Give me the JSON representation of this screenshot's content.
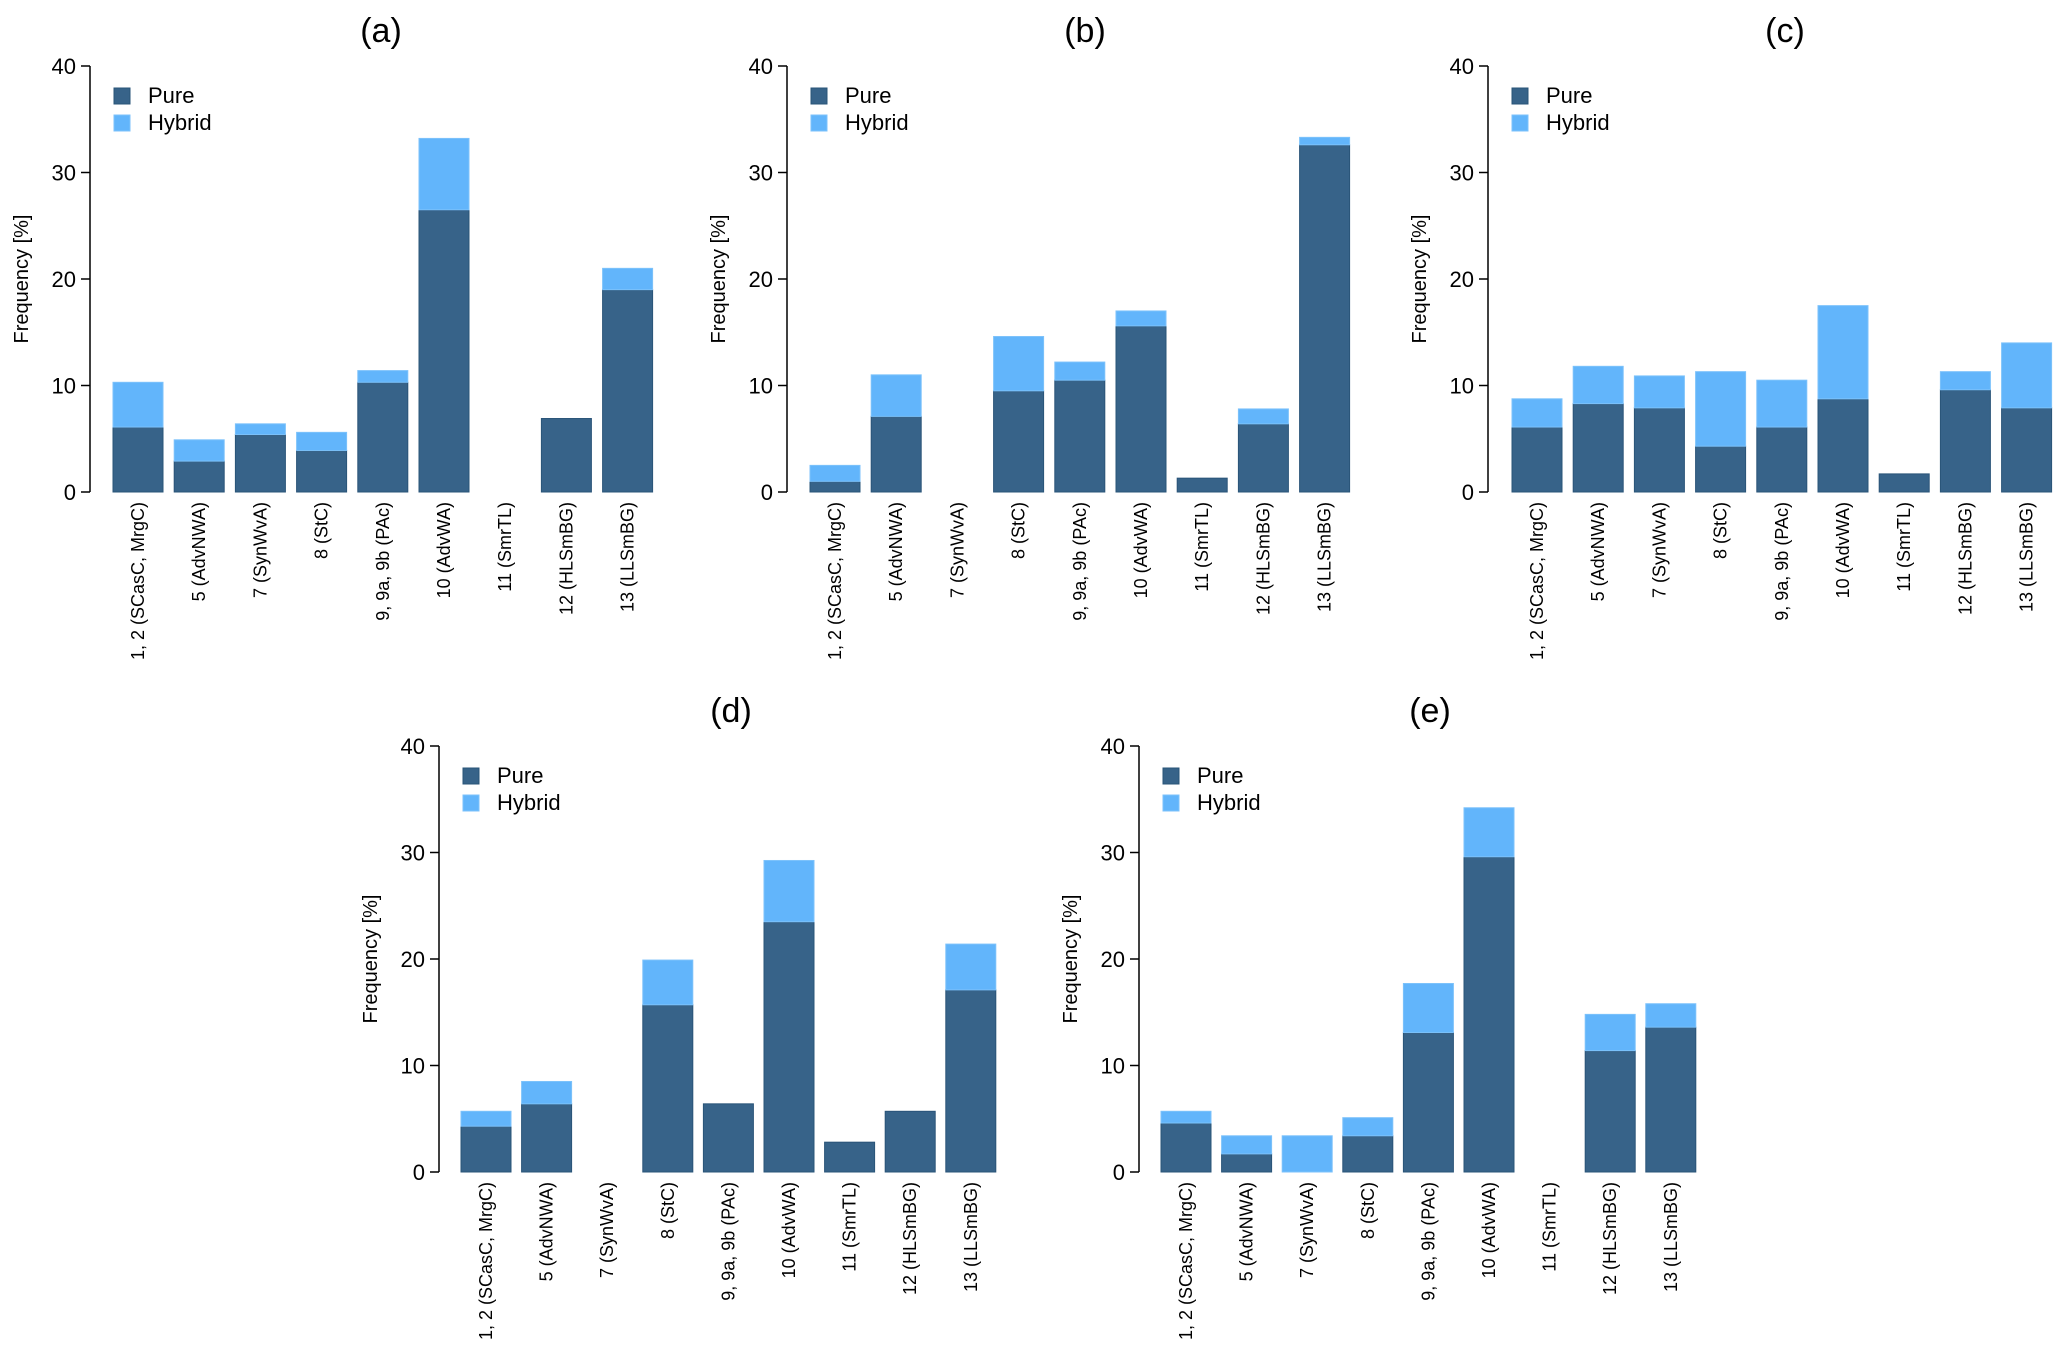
{
  "chart_data": [
    {
      "type": "bar",
      "stacked": true,
      "title": "(a)",
      "xlabel": "",
      "ylabel": "Frequency [%]",
      "ylim": [
        0,
        40
      ],
      "yticks": [
        0,
        10,
        20,
        30,
        40
      ],
      "grid": false,
      "legend": {
        "placement": "top-left",
        "entries": [
          "Pure",
          "Hybrid"
        ]
      },
      "categories": [
        "1, 2 (SCasC, MrgC)",
        "5 (AdvNWA)",
        "7 (SynWvA)",
        "8 (StC)",
        "9, 9a, 9b (PAc)",
        "10 (AdvWA)",
        "11 (SmrTL)",
        "12 (HLSmBG)",
        "13 (LLSmBG)"
      ],
      "series": [
        {
          "name": "Pure",
          "color": "#376389",
          "values": [
            6.1,
            2.9,
            5.4,
            3.9,
            10.3,
            26.5,
            0,
            6.9,
            19.0
          ]
        },
        {
          "name": "Hybrid",
          "color": "#62B5FB",
          "values": [
            4.2,
            2.0,
            1.0,
            1.7,
            1.1,
            6.7,
            0,
            0,
            2.0
          ]
        }
      ]
    },
    {
      "type": "bar",
      "stacked": true,
      "title": "(b)",
      "xlabel": "",
      "ylabel": "Frequency [%]",
      "ylim": [
        0,
        40
      ],
      "yticks": [
        0,
        10,
        20,
        30,
        40
      ],
      "grid": false,
      "legend": {
        "placement": "top-left",
        "entries": [
          "Pure",
          "Hybrid"
        ]
      },
      "categories": [
        "1, 2 (SCasC, MrgC)",
        "5 (AdvNWA)",
        "7 (SynWvA)",
        "8 (StC)",
        "9, 9a, 9b (PAc)",
        "10 (AdvWA)",
        "11 (SmrTL)",
        "12 (HLSmBG)",
        "13 (LLSmBG)"
      ],
      "series": [
        {
          "name": "Pure",
          "color": "#376389",
          "values": [
            1.0,
            7.1,
            0,
            9.5,
            10.5,
            15.6,
            1.3,
            6.4,
            32.6
          ]
        },
        {
          "name": "Hybrid",
          "color": "#62B5FB",
          "values": [
            1.5,
            3.9,
            0,
            5.1,
            1.7,
            1.4,
            0,
            1.4,
            0.7
          ]
        }
      ]
    },
    {
      "type": "bar",
      "stacked": true,
      "title": "(c)",
      "xlabel": "",
      "ylabel": "Frequency [%]",
      "ylim": [
        0,
        40
      ],
      "yticks": [
        0,
        10,
        20,
        30,
        40
      ],
      "grid": false,
      "legend": {
        "placement": "top-left",
        "entries": [
          "Pure",
          "Hybrid"
        ]
      },
      "categories": [
        "1, 2 (SCasC, MrgC)",
        "5 (AdvNWA)",
        "7 (SynWvA)",
        "8 (StC)",
        "9, 9a, 9b (PAc)",
        "10 (AdvWA)",
        "11 (SmrTL)",
        "12 (HLSmBG)",
        "13 (LLSmBG)"
      ],
      "series": [
        {
          "name": "Pure",
          "color": "#376389",
          "values": [
            6.1,
            8.3,
            7.9,
            4.3,
            6.1,
            8.75,
            1.7,
            9.6,
            7.9
          ]
        },
        {
          "name": "Hybrid",
          "color": "#62B5FB",
          "values": [
            2.65,
            3.5,
            3.0,
            7.0,
            4.4,
            8.75,
            0,
            1.7,
            6.1
          ]
        }
      ]
    },
    {
      "type": "bar",
      "stacked": true,
      "title": "(d)",
      "xlabel": "",
      "ylabel": "Frequency [%]",
      "ylim": [
        0,
        40
      ],
      "yticks": [
        0,
        10,
        20,
        30,
        40
      ],
      "grid": false,
      "legend": {
        "placement": "top-left",
        "entries": [
          "Pure",
          "Hybrid"
        ]
      },
      "categories": [
        "1, 2 (SCasC, MrgC)",
        "5 (AdvNWA)",
        "7 (SynWvA)",
        "8 (StC)",
        "9, 9a, 9b (PAc)",
        "10 (AdvWA)",
        "11 (SmrTL)",
        "12 (HLSmBG)",
        "13 (LLSmBG)"
      ],
      "series": [
        {
          "name": "Pure",
          "color": "#376389",
          "values": [
            4.3,
            6.4,
            0,
            15.7,
            6.4,
            23.5,
            2.8,
            5.7,
            17.1
          ]
        },
        {
          "name": "Hybrid",
          "color": "#62B5FB",
          "values": [
            1.4,
            2.1,
            0,
            4.2,
            0,
            5.75,
            0,
            0,
            4.3
          ]
        }
      ]
    },
    {
      "type": "bar",
      "stacked": true,
      "title": "(e)",
      "xlabel": "",
      "ylabel": "Frequency [%]",
      "ylim": [
        0,
        40
      ],
      "yticks": [
        0,
        10,
        20,
        30,
        40
      ],
      "grid": false,
      "legend": {
        "placement": "top-left",
        "entries": [
          "Pure",
          "Hybrid"
        ]
      },
      "categories": [
        "1, 2 (SCasC, MrgC)",
        "5 (AdvNWA)",
        "7 (SynWvA)",
        "8 (StC)",
        "9, 9a, 9b (PAc)",
        "10 (AdvWA)",
        "11 (SmrTL)",
        "12 (HLSmBG)",
        "13 (LLSmBG)"
      ],
      "series": [
        {
          "name": "Pure",
          "color": "#376389",
          "values": [
            4.6,
            1.7,
            0,
            3.4,
            13.1,
            29.6,
            0,
            11.4,
            13.6
          ]
        },
        {
          "name": "Hybrid",
          "color": "#62B5FB",
          "values": [
            1.1,
            1.7,
            3.4,
            1.7,
            4.6,
            4.6,
            0,
            3.4,
            2.2
          ]
        }
      ]
    }
  ]
}
